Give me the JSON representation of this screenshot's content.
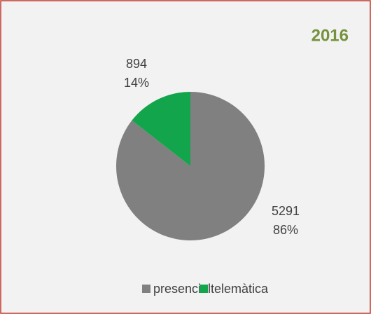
{
  "chart_data": {
    "type": "pie",
    "title": "2016",
    "categories": [
      "presencial",
      "telemàtica"
    ],
    "values": [
      5291,
      894
    ],
    "percent_labels": [
      "86%",
      "14%"
    ],
    "colors": [
      "#808080",
      "#13a54b"
    ],
    "legend": "bottom"
  }
}
